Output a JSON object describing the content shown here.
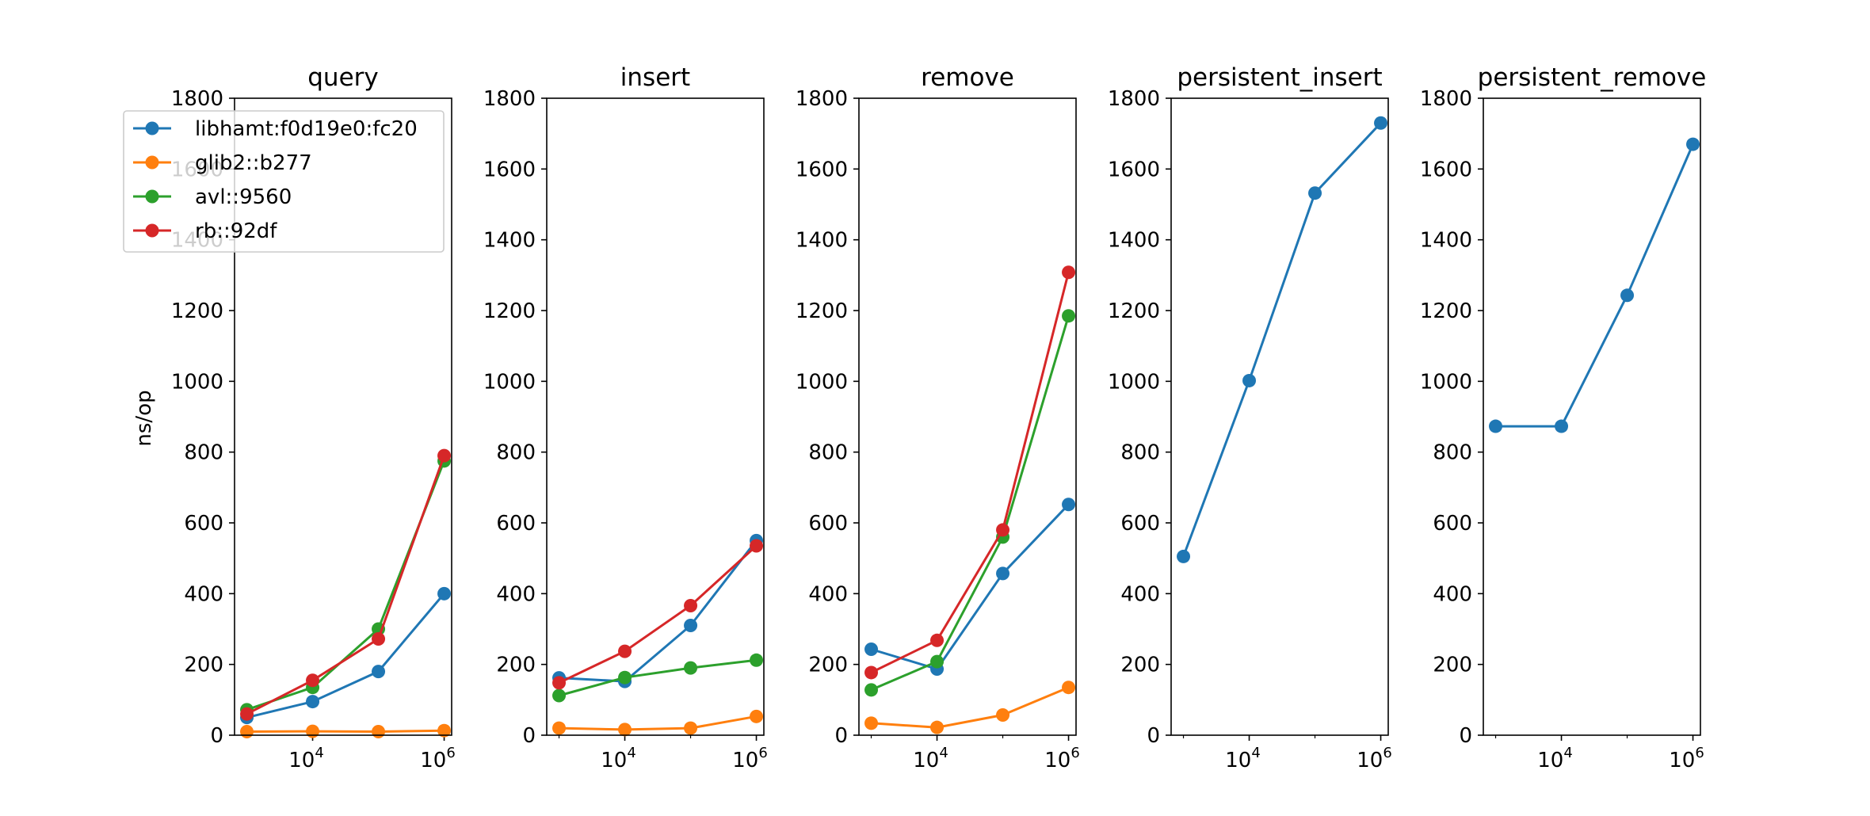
{
  "chart_data": {
    "type": "line",
    "x": [
      1000,
      10000,
      100000,
      1000000
    ],
    "xscale": "log",
    "xlim": [
      650,
      1300000
    ],
    "x_ticks": [
      10000,
      1000000
    ],
    "x_tick_labels": [
      {
        "base": "10",
        "exp": "4"
      },
      {
        "base": "10",
        "exp": "6"
      }
    ],
    "ylim": [
      0,
      1800
    ],
    "y_ticks": [
      0,
      200,
      400,
      600,
      800,
      1000,
      1200,
      1400,
      1600,
      1800
    ],
    "ylabel": "ns/op",
    "grid": false,
    "legend": {
      "placement": "top-left",
      "entries": [
        "libhamt:f0d19e0:fc20",
        "glib2::b277",
        "avl::9560",
        "rb::92df"
      ]
    },
    "colors": {
      "libhamt:f0d19e0:fc20": "#1f77b4",
      "glib2::b277": "#ff7f0e",
      "avl::9560": "#2ca02c",
      "rb::92df": "#d62728"
    },
    "subplots": [
      {
        "title": "query",
        "series": [
          {
            "name": "libhamt:f0d19e0:fc20",
            "values": [
              50,
              95,
              180,
              400
            ]
          },
          {
            "name": "glib2::b277",
            "values": [
              10,
              11,
              10,
              13
            ]
          },
          {
            "name": "avl::9560",
            "values": [
              72,
              135,
              300,
              775
            ]
          },
          {
            "name": "rb::92df",
            "values": [
              60,
              155,
              272,
              790
            ]
          }
        ]
      },
      {
        "title": "insert",
        "series": [
          {
            "name": "libhamt:f0d19e0:fc20",
            "values": [
              162,
              152,
              310,
              550
            ]
          },
          {
            "name": "glib2::b277",
            "values": [
              20,
              16,
              20,
              53
            ]
          },
          {
            "name": "avl::9560",
            "values": [
              112,
              163,
              190,
              212
            ]
          },
          {
            "name": "rb::92df",
            "values": [
              148,
              237,
              366,
              535
            ]
          }
        ]
      },
      {
        "title": "remove",
        "series": [
          {
            "name": "libhamt:f0d19e0:fc20",
            "values": [
              243,
              187,
              457,
              652
            ]
          },
          {
            "name": "glib2::b277",
            "values": [
              34,
              22,
              57,
              135
            ]
          },
          {
            "name": "avl::9560",
            "values": [
              128,
              208,
              560,
              1185
            ]
          },
          {
            "name": "rb::92df",
            "values": [
              177,
              268,
              580,
              1308
            ]
          }
        ]
      },
      {
        "title": "persistent_insert",
        "series": [
          {
            "name": "libhamt:f0d19e0:fc20",
            "values": [
              505,
              1002,
              1532,
              1730
            ]
          }
        ]
      },
      {
        "title": "persistent_remove",
        "series": [
          {
            "name": "libhamt:f0d19e0:fc20",
            "values": [
              873,
              873,
              1243,
              1670
            ]
          }
        ]
      }
    ]
  }
}
